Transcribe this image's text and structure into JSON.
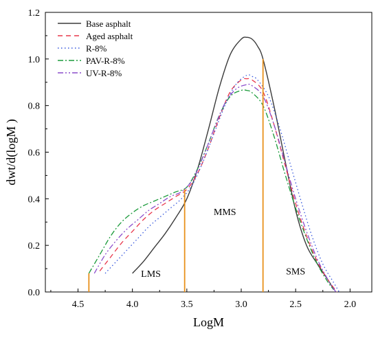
{
  "chart_data": {
    "type": "line",
    "xlabel": "LogM",
    "ylabel": "dwt/d(logM )",
    "xlim": [
      4.8,
      1.8
    ],
    "ylim": [
      0.0,
      1.2
    ],
    "x_reversed": true,
    "x_ticks": [
      {
        "v": 4.5,
        "label": "4.5"
      },
      {
        "v": 4.0,
        "label": "4.0"
      },
      {
        "v": 3.5,
        "label": "3.5"
      },
      {
        "v": 3.0,
        "label": "3.0"
      },
      {
        "v": 2.5,
        "label": "2.5"
      },
      {
        "v": 2.0,
        "label": "2.0"
      }
    ],
    "y_ticks": [
      {
        "v": 0.0,
        "label": "0.0"
      },
      {
        "v": 0.2,
        "label": "0.2"
      },
      {
        "v": 0.4,
        "label": "0.4"
      },
      {
        "v": 0.6,
        "label": "0.6"
      },
      {
        "v": 0.8,
        "label": "0.8"
      },
      {
        "v": 1.0,
        "label": "1.0"
      },
      {
        "v": 1.2,
        "label": "1.2"
      }
    ],
    "legend_position": "top-left",
    "series": [
      {
        "name": "Base asphalt",
        "color": "#3a3a3a",
        "dash": "none",
        "x": [
          4.0,
          3.9,
          3.8,
          3.7,
          3.6,
          3.5,
          3.4,
          3.3,
          3.2,
          3.1,
          3.0,
          2.95,
          2.9,
          2.85,
          2.8,
          2.7,
          2.6,
          2.5,
          2.4,
          2.3,
          2.2,
          2.15
        ],
        "y": [
          0.08,
          0.13,
          0.19,
          0.25,
          0.32,
          0.4,
          0.53,
          0.7,
          0.88,
          1.02,
          1.085,
          1.093,
          1.085,
          1.055,
          1.0,
          0.8,
          0.57,
          0.35,
          0.2,
          0.12,
          0.05,
          0.01
        ]
      },
      {
        "name": "Aged asphalt",
        "color": "#e8364a",
        "dash": "7,5",
        "x": [
          4.3,
          4.2,
          4.1,
          4.0,
          3.9,
          3.8,
          3.7,
          3.6,
          3.5,
          3.4,
          3.3,
          3.2,
          3.1,
          3.0,
          2.95,
          2.9,
          2.8,
          2.7,
          2.6,
          2.5,
          2.4,
          2.3,
          2.2,
          2.12
        ],
        "y": [
          0.09,
          0.15,
          0.21,
          0.26,
          0.31,
          0.35,
          0.38,
          0.41,
          0.44,
          0.51,
          0.62,
          0.75,
          0.86,
          0.91,
          0.915,
          0.91,
          0.86,
          0.72,
          0.55,
          0.38,
          0.24,
          0.13,
          0.05,
          0.0
        ]
      },
      {
        "name": "R-8%",
        "color": "#3355dd",
        "dash": "1.5,3.5",
        "x": [
          4.25,
          4.15,
          4.05,
          3.95,
          3.85,
          3.75,
          3.65,
          3.55,
          3.45,
          3.35,
          3.25,
          3.15,
          3.05,
          2.95,
          2.9,
          2.85,
          2.75,
          2.65,
          2.55,
          2.45,
          2.35,
          2.25,
          2.15,
          2.1
        ],
        "y": [
          0.08,
          0.13,
          0.18,
          0.23,
          0.28,
          0.32,
          0.36,
          0.4,
          0.46,
          0.56,
          0.68,
          0.8,
          0.89,
          0.93,
          0.925,
          0.91,
          0.84,
          0.71,
          0.55,
          0.39,
          0.24,
          0.12,
          0.04,
          0.0
        ]
      },
      {
        "name": "PAV-R-8%",
        "color": "#1a9a3a",
        "dash": "8,3,2,3",
        "x": [
          4.4,
          4.3,
          4.2,
          4.1,
          4.0,
          3.9,
          3.8,
          3.7,
          3.6,
          3.5,
          3.4,
          3.3,
          3.2,
          3.1,
          3.0,
          2.95,
          2.9,
          2.8,
          2.7,
          2.6,
          2.5,
          2.4,
          2.3,
          2.2,
          2.15
        ],
        "y": [
          0.08,
          0.16,
          0.24,
          0.3,
          0.34,
          0.37,
          0.39,
          0.41,
          0.43,
          0.45,
          0.53,
          0.64,
          0.76,
          0.84,
          0.865,
          0.865,
          0.855,
          0.8,
          0.67,
          0.51,
          0.36,
          0.23,
          0.12,
          0.04,
          0.01
        ]
      },
      {
        "name": "UV-R-8%",
        "color": "#8a4ccc",
        "dash": "8,3,2,3,2,3",
        "x": [
          4.35,
          4.25,
          4.15,
          4.05,
          3.95,
          3.85,
          3.75,
          3.65,
          3.55,
          3.45,
          3.35,
          3.25,
          3.15,
          3.05,
          2.95,
          2.9,
          2.8,
          2.7,
          2.6,
          2.5,
          2.4,
          2.3,
          2.2,
          2.13
        ],
        "y": [
          0.08,
          0.16,
          0.22,
          0.27,
          0.31,
          0.35,
          0.38,
          0.41,
          0.43,
          0.48,
          0.58,
          0.7,
          0.81,
          0.87,
          0.89,
          0.885,
          0.84,
          0.72,
          0.56,
          0.4,
          0.26,
          0.14,
          0.05,
          0.0
        ]
      }
    ],
    "vlines": [
      {
        "x": 4.4,
        "y_top": 0.08,
        "color": "#e8901a"
      },
      {
        "x": 3.52,
        "y_top": 0.44,
        "color": "#e8901a"
      },
      {
        "x": 2.8,
        "y_top": 1.0,
        "color": "#e8901a"
      }
    ],
    "annotations": [
      {
        "text": "LMS",
        "x": 3.83,
        "y": 0.065
      },
      {
        "text": "MMS",
        "x": 3.15,
        "y": 0.33
      },
      {
        "text": "SMS",
        "x": 2.5,
        "y": 0.075
      }
    ]
  }
}
